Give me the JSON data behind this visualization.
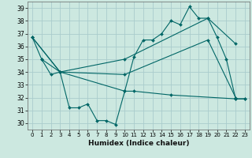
{
  "xlabel": "Humidex (Indice chaleur)",
  "xlim": [
    -0.5,
    23.5
  ],
  "ylim": [
    29.5,
    39.5
  ],
  "yticks": [
    30,
    31,
    32,
    33,
    34,
    35,
    36,
    37,
    38,
    39
  ],
  "xticks": [
    0,
    1,
    2,
    3,
    4,
    5,
    6,
    7,
    8,
    9,
    10,
    11,
    12,
    13,
    14,
    15,
    16,
    17,
    18,
    19,
    20,
    21,
    22,
    23
  ],
  "background_color": "#cce8e0",
  "grid_color": "#aacccc",
  "line_color": "#006666",
  "line1_x": [
    0,
    1,
    2,
    3,
    4,
    5,
    6,
    7,
    8,
    9,
    10,
    11,
    12,
    13,
    14,
    15,
    16,
    17,
    18,
    19,
    20,
    21,
    22,
    23
  ],
  "line1_y": [
    36.7,
    35.0,
    33.8,
    34.0,
    31.2,
    31.2,
    31.5,
    30.2,
    30.2,
    29.9,
    32.5,
    35.2,
    36.5,
    36.5,
    37.0,
    38.0,
    37.7,
    39.1,
    38.2,
    38.2,
    36.7,
    35.0,
    31.9,
    31.9
  ],
  "line2_x": [
    0,
    3,
    10,
    19,
    22
  ],
  "line2_y": [
    36.7,
    34.0,
    35.0,
    38.2,
    36.2
  ],
  "line3_x": [
    0,
    3,
    10,
    19,
    22
  ],
  "line3_y": [
    36.7,
    34.0,
    33.8,
    36.5,
    32.0
  ],
  "line4_x": [
    1,
    3,
    10,
    11,
    15,
    22,
    23
  ],
  "line4_y": [
    35.0,
    34.0,
    32.5,
    32.5,
    32.2,
    31.9,
    31.9
  ]
}
